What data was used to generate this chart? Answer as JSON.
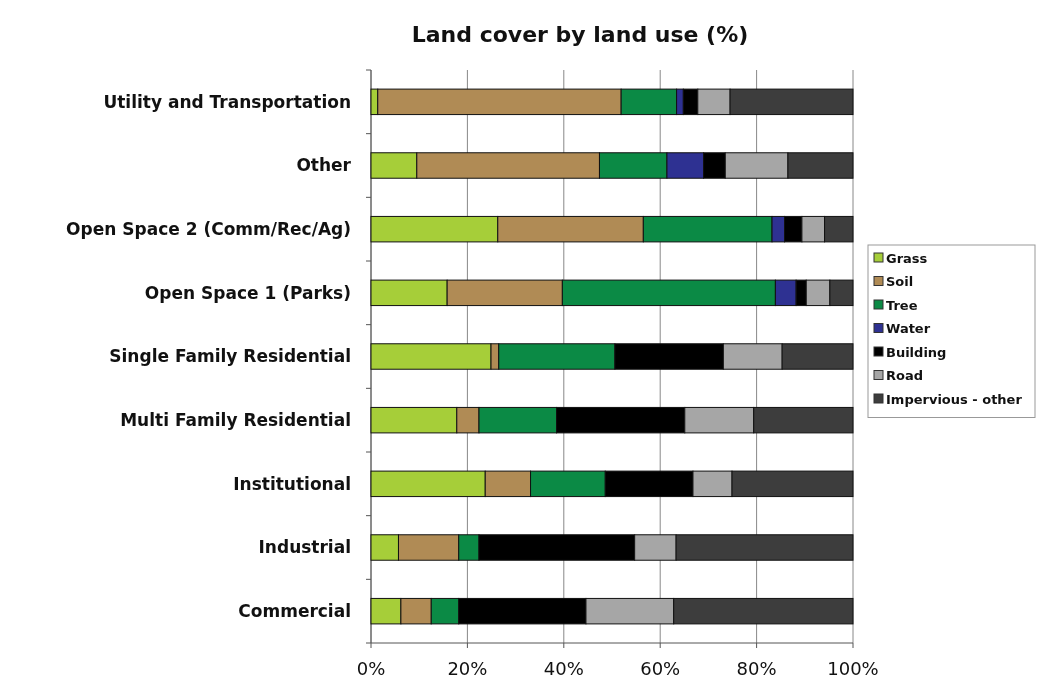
{
  "chart_data": {
    "type": "bar",
    "title": "Land cover by land use (%)",
    "orientation": "horizontal",
    "stacked": true,
    "categories": [
      "Utility and Transportation",
      "Other",
      "Open Space 2 (Comm/Rec/Ag)",
      "Open Space 1 (Parks)",
      "Single Family Residential",
      "Multi Family Residential",
      "Institutional",
      "Industrial",
      "Commercial"
    ],
    "series": [
      {
        "name": "Grass",
        "color": "#a6ce39",
        "values": [
          1.4,
          9.5,
          26.3,
          15.8,
          24.9,
          17.8,
          23.7,
          5.7,
          6.2
        ]
      },
      {
        "name": "Soil",
        "color": "#b08b55",
        "values": [
          50.5,
          37.9,
          30.2,
          23.9,
          1.6,
          4.6,
          9.4,
          12.5,
          6.3
        ]
      },
      {
        "name": "Tree",
        "color": "#0b8a45",
        "values": [
          11.5,
          14.0,
          26.7,
          44.2,
          24.1,
          16.1,
          15.5,
          4.2,
          5.7
        ]
      },
      {
        "name": "Water",
        "color": "#2e3192",
        "values": [
          1.4,
          7.6,
          2.6,
          4.3,
          0,
          0,
          0,
          0,
          0
        ]
      },
      {
        "name": "Building",
        "color": "#000000",
        "values": [
          3.0,
          4.5,
          3.6,
          2.1,
          22.5,
          26.6,
          18.2,
          32.3,
          26.4
        ]
      },
      {
        "name": "Road",
        "color": "#a6a6a6",
        "values": [
          6.7,
          13.0,
          4.7,
          4.9,
          12.2,
          14.3,
          8.1,
          8.6,
          18.2
        ]
      },
      {
        "name": "Impervious - other",
        "color": "#3d3d3d",
        "values": [
          25.5,
          13.5,
          5.9,
          4.8,
          14.7,
          20.6,
          25.1,
          36.7,
          37.2
        ]
      }
    ],
    "xlim": [
      0,
      100
    ],
    "xticks": [
      {
        "value": 0,
        "label": "0%"
      },
      {
        "value": 20,
        "label": "20%"
      },
      {
        "value": 40,
        "label": "40%"
      },
      {
        "value": 60,
        "label": "60%"
      },
      {
        "value": 80,
        "label": "80%"
      },
      {
        "value": 100,
        "label": "100%"
      }
    ],
    "grid": "x",
    "legend": "right"
  }
}
